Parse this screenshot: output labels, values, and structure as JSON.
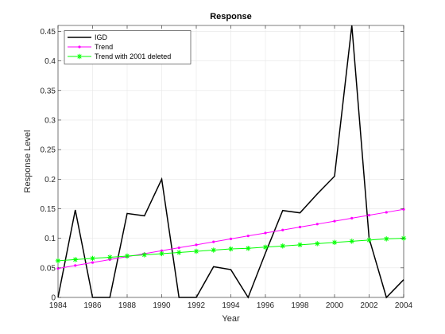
{
  "chart_data": {
    "type": "line",
    "title": "Response",
    "xlabel": "Year",
    "ylabel": "Response Level",
    "xlim": [
      1984,
      2004
    ],
    "ylim": [
      0,
      0.46
    ],
    "xticks": [
      1984,
      1986,
      1988,
      1990,
      1992,
      1994,
      1996,
      1998,
      2000,
      2002,
      2004
    ],
    "xtick_labels": [
      "1984",
      "1986",
      "1988",
      "1990",
      "1992",
      "1994",
      "1996",
      "1998",
      "2000",
      "2002",
      "2004"
    ],
    "yticks": [
      0,
      0.05,
      0.1,
      0.15,
      0.2,
      0.25,
      0.3,
      0.35,
      0.4,
      0.45
    ],
    "ytick_labels": [
      "0",
      "0.05",
      "0.1",
      "0.15",
      "0.2",
      "0.25",
      "0.3",
      "0.35",
      "0.4",
      "0.45"
    ],
    "grid": true,
    "legend_position": "top-left",
    "series": [
      {
        "name": "IGD",
        "color": "#000000",
        "marker": "none",
        "line_width": 1.5,
        "x": [
          1984,
          1985,
          1986,
          1987,
          1988,
          1989,
          1990,
          1991,
          1992,
          1993,
          1994,
          1995,
          1996,
          1997,
          1998,
          1999,
          2000,
          2001,
          2002,
          2003,
          2004
        ],
        "values": [
          0,
          0.148,
          0,
          0,
          0.142,
          0.138,
          0.2,
          0,
          0,
          0.052,
          0.047,
          0,
          0.075,
          0.147,
          0.143,
          0.175,
          0.205,
          0.46,
          0.1,
          0,
          0.03
        ]
      },
      {
        "name": "Trend",
        "color": "#ff00ff",
        "marker": "dot",
        "line_width": 1,
        "x": [
          1984,
          1985,
          1986,
          1987,
          1988,
          1989,
          1990,
          1991,
          1992,
          1993,
          1994,
          1995,
          1996,
          1997,
          1998,
          1999,
          2000,
          2001,
          2002,
          2003,
          2004
        ],
        "values": [
          0.049,
          0.054,
          0.059,
          0.064,
          0.069,
          0.074,
          0.079,
          0.084,
          0.089,
          0.094,
          0.099,
          0.104,
          0.109,
          0.114,
          0.119,
          0.124,
          0.129,
          0.134,
          0.139,
          0.144,
          0.149
        ]
      },
      {
        "name": "Trend with 2001 deleted",
        "color": "#00ff00",
        "marker": "asterisk",
        "line_width": 1,
        "x": [
          1984,
          1985,
          1986,
          1987,
          1988,
          1989,
          1990,
          1991,
          1992,
          1993,
          1994,
          1995,
          1996,
          1997,
          1998,
          1999,
          2000,
          2001,
          2002,
          2003,
          2004
        ],
        "values": [
          0.062,
          0.064,
          0.066,
          0.068,
          0.07,
          0.072,
          0.074,
          0.076,
          0.078,
          0.08,
          0.082,
          0.083,
          0.085,
          0.087,
          0.089,
          0.091,
          0.093,
          0.095,
          0.097,
          0.099,
          0.1
        ]
      }
    ]
  }
}
